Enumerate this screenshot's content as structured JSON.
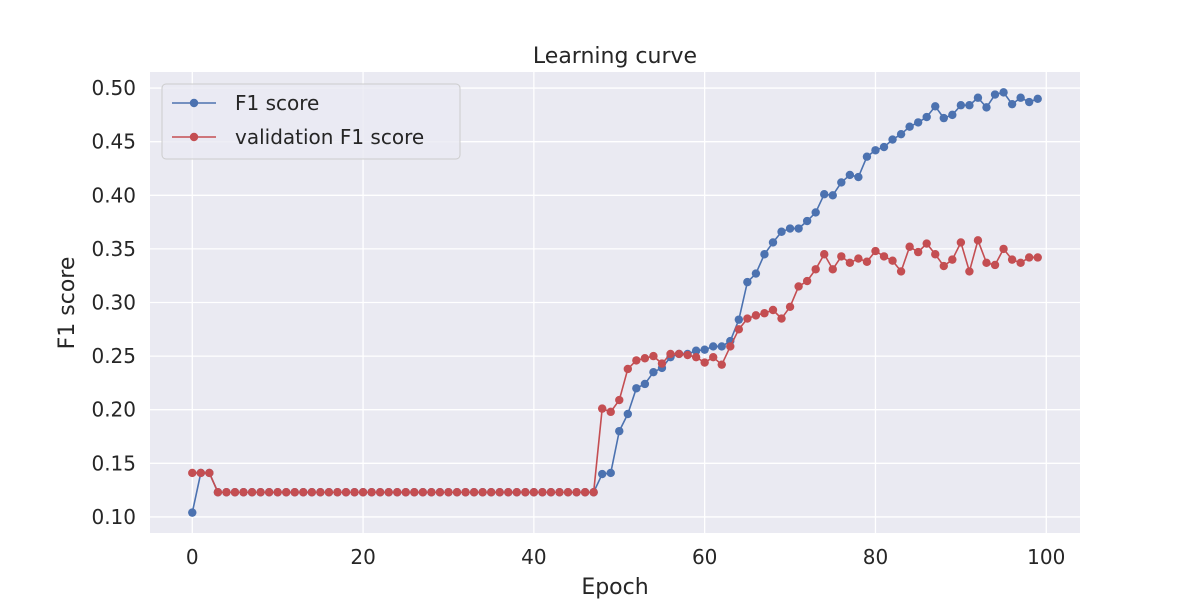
{
  "chart_data": {
    "type": "line",
    "title": "Learning curve",
    "xlabel": "Epoch",
    "ylabel": "F1 score",
    "xlim": [
      -4.95,
      103.95
    ],
    "ylim": [
      0.085,
      0.515
    ],
    "xticks": [
      0,
      20,
      40,
      60,
      80,
      100
    ],
    "yticks": [
      0.1,
      0.15,
      0.2,
      0.25,
      0.3,
      0.35,
      0.4,
      0.45,
      0.5
    ],
    "ytick_labels": [
      "0.10",
      "0.15",
      "0.20",
      "0.25",
      "0.30",
      "0.35",
      "0.40",
      "0.45",
      "0.50"
    ],
    "grid": true,
    "legend_position": "top-left",
    "x": [
      0,
      1,
      2,
      3,
      4,
      5,
      6,
      7,
      8,
      9,
      10,
      11,
      12,
      13,
      14,
      15,
      16,
      17,
      18,
      19,
      20,
      21,
      22,
      23,
      24,
      25,
      26,
      27,
      28,
      29,
      30,
      31,
      32,
      33,
      34,
      35,
      36,
      37,
      38,
      39,
      40,
      41,
      42,
      43,
      44,
      45,
      46,
      47,
      48,
      49,
      50,
      51,
      52,
      53,
      54,
      55,
      56,
      57,
      58,
      59,
      60,
      61,
      62,
      63,
      64,
      65,
      66,
      67,
      68,
      69,
      70,
      71,
      72,
      73,
      74,
      75,
      76,
      77,
      78,
      79,
      80,
      81,
      82,
      83,
      84,
      85,
      86,
      87,
      88,
      89,
      90,
      91,
      92,
      93,
      94,
      95,
      96,
      97,
      98,
      99
    ],
    "series": [
      {
        "name": "F1 score",
        "color": "#4c72b0",
        "values": [
          0.104,
          0.141,
          0.141,
          0.123,
          0.123,
          0.123,
          0.123,
          0.123,
          0.123,
          0.123,
          0.123,
          0.123,
          0.123,
          0.123,
          0.123,
          0.123,
          0.123,
          0.123,
          0.123,
          0.123,
          0.123,
          0.123,
          0.123,
          0.123,
          0.123,
          0.123,
          0.123,
          0.123,
          0.123,
          0.123,
          0.123,
          0.123,
          0.123,
          0.123,
          0.123,
          0.123,
          0.123,
          0.123,
          0.123,
          0.123,
          0.123,
          0.123,
          0.123,
          0.123,
          0.123,
          0.123,
          0.123,
          0.123,
          0.14,
          0.141,
          0.18,
          0.196,
          0.22,
          0.224,
          0.235,
          0.239,
          0.249,
          0.252,
          0.252,
          0.255,
          0.256,
          0.259,
          0.259,
          0.264,
          0.284,
          0.319,
          0.327,
          0.345,
          0.356,
          0.366,
          0.369,
          0.369,
          0.376,
          0.384,
          0.401,
          0.4,
          0.412,
          0.419,
          0.417,
          0.436,
          0.442,
          0.445,
          0.452,
          0.457,
          0.464,
          0.468,
          0.473,
          0.483,
          0.472,
          0.475,
          0.484,
          0.484,
          0.491,
          0.482,
          0.494,
          0.496,
          0.485,
          0.491,
          0.487,
          0.49
        ]
      },
      {
        "name": "validation F1 score",
        "color": "#c44e52",
        "values": [
          0.141,
          0.141,
          0.141,
          0.123,
          0.123,
          0.123,
          0.123,
          0.123,
          0.123,
          0.123,
          0.123,
          0.123,
          0.123,
          0.123,
          0.123,
          0.123,
          0.123,
          0.123,
          0.123,
          0.123,
          0.123,
          0.123,
          0.123,
          0.123,
          0.123,
          0.123,
          0.123,
          0.123,
          0.123,
          0.123,
          0.123,
          0.123,
          0.123,
          0.123,
          0.123,
          0.123,
          0.123,
          0.123,
          0.123,
          0.123,
          0.123,
          0.123,
          0.123,
          0.123,
          0.123,
          0.123,
          0.123,
          0.123,
          0.201,
          0.198,
          0.209,
          0.238,
          0.246,
          0.248,
          0.25,
          0.243,
          0.252,
          0.252,
          0.251,
          0.249,
          0.244,
          0.249,
          0.242,
          0.259,
          0.275,
          0.285,
          0.288,
          0.29,
          0.293,
          0.285,
          0.296,
          0.315,
          0.32,
          0.331,
          0.345,
          0.331,
          0.343,
          0.337,
          0.341,
          0.338,
          0.348,
          0.343,
          0.339,
          0.329,
          0.352,
          0.347,
          0.355,
          0.345,
          0.334,
          0.34,
          0.356,
          0.329,
          0.358,
          0.337,
          0.335,
          0.35,
          0.34,
          0.337,
          0.342,
          0.342
        ]
      }
    ]
  }
}
